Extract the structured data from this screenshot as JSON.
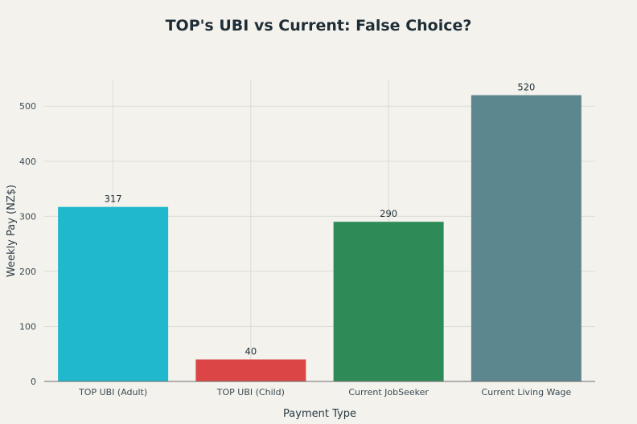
{
  "chart_data": {
    "type": "bar",
    "title": "TOP's UBI vs Current: False Choice?",
    "xlabel": "Payment Type",
    "ylabel": "Weekly Pay (NZ$)",
    "categories": [
      "TOP UBI (Adult)",
      "TOP UBI (Child)",
      "Current JobSeeker",
      "Current Living Wage"
    ],
    "values": [
      317,
      40,
      290,
      520
    ],
    "data_labels": [
      "317",
      "40",
      "290",
      "520"
    ],
    "colors": [
      "#1fb8cd",
      "#db4545",
      "#2e8b57",
      "#5d878f"
    ],
    "yticks": [
      0,
      100,
      200,
      300,
      400,
      500
    ],
    "ylim": [
      0,
      547
    ],
    "grid": true
  }
}
